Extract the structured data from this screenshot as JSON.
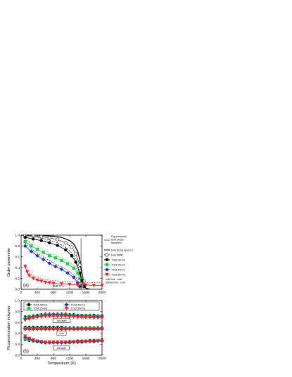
{
  "chart_data": [
    {
      "type": "line",
      "panel_label": "(a)",
      "xlabel": "",
      "ylabel": "Order parameter",
      "xlim": [
        0,
        2000
      ],
      "ylim": [
        0.0,
        1.0
      ],
      "xticks": [
        0,
        400,
        800,
        1200,
        1600,
        2000
      ],
      "yticks": [
        0.0,
        0.2,
        0.4,
        0.6,
        0.8,
        1.0
      ],
      "annotation": "800°C",
      "legend_position": "right",
      "experimental_label": "Experimental bulk phase transition",
      "series": [
        {
          "name": "bulk (Ising approx.)",
          "color": "#000000",
          "marker": "none",
          "x": [
            0,
            200,
            400,
            600,
            800,
            1000,
            1200,
            1300,
            1400,
            1450,
            1500,
            1550,
            1600,
            1700
          ],
          "y": [
            1.0,
            1.0,
            1.0,
            0.99,
            0.98,
            0.96,
            0.9,
            0.84,
            0.7,
            0.55,
            0.32,
            0.12,
            0.02,
            0.0
          ]
        },
        {
          "name": "bulk MMB",
          "color": "#555555",
          "marker": "open-circle",
          "x": [
            100,
            300,
            500,
            700,
            900,
            1100,
            1250,
            1350,
            1450,
            1550
          ],
          "y": [
            0.99,
            0.98,
            0.97,
            0.95,
            0.92,
            0.86,
            0.78,
            0.66,
            0.45,
            0.15
          ]
        },
        {
          "name": "TO(6.98nm)",
          "color": "#000000",
          "marker": "filled-circle",
          "x": [
            100,
            300,
            500,
            700,
            900,
            1100,
            1250,
            1350,
            1450,
            1500,
            1550
          ],
          "y": [
            0.96,
            0.93,
            0.9,
            0.86,
            0.81,
            0.73,
            0.62,
            0.5,
            0.3,
            0.16,
            0.05
          ]
        },
        {
          "name": "TO(4.25nm)",
          "color": "#22cc44",
          "marker": "filled-square",
          "x": [
            100,
            250,
            400,
            550,
            700,
            850,
            1000,
            1150,
            1300,
            1400,
            1450,
            1500
          ],
          "y": [
            0.88,
            0.8,
            0.74,
            0.68,
            0.62,
            0.58,
            0.53,
            0.47,
            0.39,
            0.3,
            0.2,
            0.06
          ]
        },
        {
          "name": "TO(3.40nm)",
          "color": "#2233bb",
          "marker": "filled-diamond",
          "x": [
            100,
            250,
            400,
            550,
            700,
            850,
            1000,
            1150,
            1300,
            1400,
            1450
          ],
          "y": [
            0.8,
            0.7,
            0.62,
            0.55,
            0.48,
            0.42,
            0.37,
            0.3,
            0.22,
            0.12,
            0.05
          ]
        },
        {
          "name": "TO(2.55nm)",
          "color": "#ee2222",
          "marker": "filled-triangle-down",
          "x": [
            100,
            150,
            200,
            300,
            400,
            500,
            600,
            700,
            800,
            1000,
            1200,
            1400,
            1600,
            1800,
            2000
          ],
          "y": [
            0.42,
            0.32,
            0.25,
            0.2,
            0.17,
            0.15,
            0.13,
            0.12,
            0.11,
            0.1,
            0.09,
            0.08,
            0.08,
            0.07,
            0.07
          ]
        }
      ],
      "legend_note": "solid line - total dashed line - core"
    },
    {
      "type": "line",
      "panel_label": "(b)",
      "xlabel": "Temperature (K)",
      "ylabel": "Pt concentration in layers",
      "xlim": [
        0,
        2000
      ],
      "ylim": [
        0.0,
        1.0
      ],
      "xticks": [
        0,
        400,
        800,
        1200,
        1600,
        2000
      ],
      "yticks": [
        0.0,
        0.2,
        0.4,
        0.6,
        0.8,
        1.0
      ],
      "reference_line_y": 0.5,
      "layer_labels": [
        "1st layer",
        "core",
        "2d layer"
      ],
      "legend_position": "top",
      "series": [
        {
          "name": "TO(6.98nm)",
          "color": "#000000",
          "marker": "filled-circle",
          "x": [
            100,
            200,
            300,
            400,
            500,
            600,
            700,
            800,
            900,
            1000,
            1100,
            1200,
            1300,
            1400,
            1500,
            1600,
            1700,
            1800,
            1900,
            2000
          ],
          "first_layer": [
            0.7,
            0.71,
            0.72,
            0.73,
            0.74,
            0.75,
            0.75,
            0.75,
            0.75,
            0.75,
            0.75,
            0.74,
            0.74,
            0.73,
            0.73,
            0.73,
            0.73,
            0.73,
            0.72,
            0.72
          ],
          "core": [
            0.51,
            0.51,
            0.51,
            0.51,
            0.51,
            0.51,
            0.51,
            0.51,
            0.51,
            0.51,
            0.5,
            0.5,
            0.5,
            0.5,
            0.5,
            0.5,
            0.5,
            0.5,
            0.5,
            0.5
          ],
          "second_layer": [
            0.29,
            0.27,
            0.26,
            0.25,
            0.24,
            0.24,
            0.24,
            0.24,
            0.24,
            0.24,
            0.24,
            0.25,
            0.25,
            0.26,
            0.26,
            0.26,
            0.27,
            0.27,
            0.27,
            0.28
          ]
        },
        {
          "name": "TO(4.25nm)",
          "color": "#22cc44",
          "marker": "filled-square",
          "x": [
            100,
            200,
            300,
            400,
            500,
            600,
            700,
            800,
            900,
            1000,
            1100,
            1200,
            1300,
            1400,
            1500,
            1600,
            1700,
            1800,
            1900,
            2000
          ],
          "first_layer": [
            0.68,
            0.7,
            0.71,
            0.72,
            0.73,
            0.74,
            0.74,
            0.74,
            0.74,
            0.74,
            0.74,
            0.73,
            0.73,
            0.72,
            0.72,
            0.72,
            0.72,
            0.71,
            0.71,
            0.71
          ],
          "core": [
            0.49,
            0.49,
            0.49,
            0.49,
            0.49,
            0.49,
            0.49,
            0.49,
            0.49,
            0.49,
            0.49,
            0.49,
            0.49,
            0.49,
            0.49,
            0.49,
            0.49,
            0.49,
            0.49,
            0.49
          ],
          "second_layer": [
            0.31,
            0.28,
            0.26,
            0.25,
            0.24,
            0.24,
            0.24,
            0.24,
            0.24,
            0.24,
            0.24,
            0.24,
            0.25,
            0.25,
            0.25,
            0.26,
            0.26,
            0.26,
            0.27,
            0.27
          ]
        },
        {
          "name": "TO(3.40nm)",
          "color": "#2233bb",
          "marker": "filled-diamond",
          "x": [
            100,
            200,
            300,
            400,
            500,
            600,
            700,
            800,
            900,
            1000,
            1100,
            1200,
            1300,
            1400,
            1500,
            1600,
            1700,
            1800,
            1900,
            2000
          ],
          "first_layer": [
            0.66,
            0.68,
            0.7,
            0.71,
            0.72,
            0.73,
            0.73,
            0.73,
            0.73,
            0.73,
            0.73,
            0.72,
            0.72,
            0.71,
            0.71,
            0.7,
            0.7,
            0.7,
            0.7,
            0.7
          ],
          "core": [
            0.48,
            0.48,
            0.48,
            0.48,
            0.48,
            0.48,
            0.48,
            0.48,
            0.48,
            0.48,
            0.48,
            0.48,
            0.48,
            0.48,
            0.48,
            0.48,
            0.48,
            0.48,
            0.48,
            0.48
          ],
          "second_layer": [
            0.33,
            0.3,
            0.27,
            0.25,
            0.24,
            0.23,
            0.23,
            0.23,
            0.23,
            0.23,
            0.23,
            0.23,
            0.24,
            0.24,
            0.24,
            0.25,
            0.25,
            0.25,
            0.26,
            0.26
          ]
        },
        {
          "name": "TO(2.55nm)",
          "color": "#ee2222",
          "marker": "filled-triangle-down",
          "x": [
            100,
            200,
            300,
            400,
            500,
            600,
            700,
            800,
            900,
            1000,
            1100,
            1200,
            1300,
            1400,
            1500,
            1600,
            1700,
            1800,
            1900,
            2000
          ],
          "first_layer": [
            0.64,
            0.66,
            0.68,
            0.69,
            0.7,
            0.71,
            0.71,
            0.71,
            0.71,
            0.71,
            0.71,
            0.7,
            0.7,
            0.69,
            0.69,
            0.69,
            0.69,
            0.68,
            0.68,
            0.68
          ],
          "core": [
            0.47,
            0.47,
            0.47,
            0.47,
            0.47,
            0.47,
            0.47,
            0.47,
            0.47,
            0.47,
            0.47,
            0.47,
            0.47,
            0.47,
            0.47,
            0.47,
            0.47,
            0.47,
            0.47,
            0.47
          ],
          "second_layer": [
            0.35,
            0.31,
            0.28,
            0.26,
            0.25,
            0.24,
            0.24,
            0.24,
            0.24,
            0.24,
            0.24,
            0.24,
            0.24,
            0.25,
            0.25,
            0.25,
            0.25,
            0.26,
            0.26,
            0.26
          ]
        }
      ]
    }
  ]
}
